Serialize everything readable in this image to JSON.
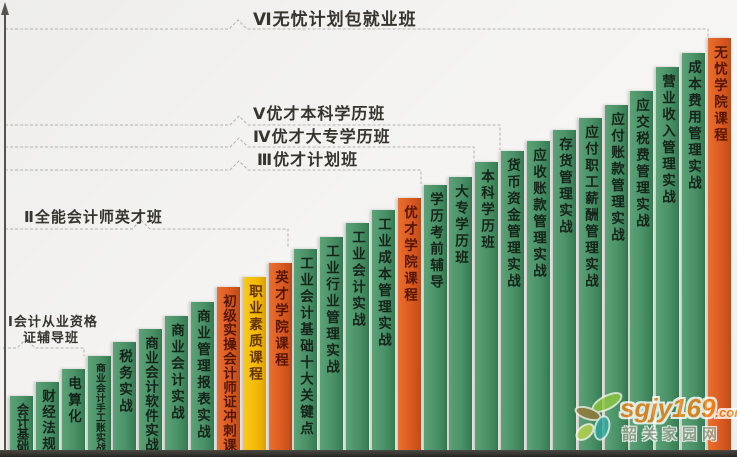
{
  "chart_data": {
    "type": "bar",
    "title": "",
    "description": "Ascending staircase of 28 accounting course modules grouped into six package levels; unlabeled vertical axis with arrow; relative bar heights in pixels (no numeric scale shown).",
    "categories": [
      "会计基础",
      "财经法规",
      "电算化",
      "商业会计手工账实战",
      "税务实战",
      "商业会计软件实战",
      "商业会计实战",
      "商业管理报表实战",
      "初级实操会计师证冲刺课",
      "职业素质课程",
      "英才学院课程",
      "工业会计基础十大关键点",
      "工业行业管理实战",
      "工业会计实战",
      "工业成本管理实战",
      "优才学院课程",
      "学历考前辅导",
      "大专学历班",
      "本科学历班",
      "货币资金管理实战",
      "应收账款管理实战",
      "存货管理实战",
      "应付职工薪酬管理实战",
      "应付账款管理实战",
      "应交税费管理实战",
      "营业收入管理实战",
      "成本费用管理实战",
      "无忧学院课程"
    ],
    "values": [
      61,
      75,
      88,
      101,
      115,
      128,
      141,
      155,
      170,
      180,
      194,
      208,
      220,
      234,
      247,
      259,
      272,
      280,
      295,
      306,
      316,
      327,
      339,
      352,
      366,
      390,
      404,
      419
    ],
    "bar_colors": [
      "green",
      "green",
      "green",
      "green",
      "green",
      "green",
      "green",
      "green",
      "orange",
      "yellow",
      "orange",
      "green",
      "green",
      "green",
      "green",
      "orange",
      "green",
      "green",
      "green",
      "green",
      "green",
      "green",
      "green",
      "green",
      "green",
      "green",
      "green",
      "orange"
    ],
    "xlabel": "",
    "ylabel": "",
    "axis_note": "vertical axis with upward arrow, no ticks or units",
    "levels": [
      {
        "id": "Ⅰ",
        "label": "Ⅰ会计从业资格证辅导班",
        "label_lines": [
          "Ⅰ会计从业资格",
          "证辅导班"
        ],
        "through_course": "电算化"
      },
      {
        "id": "Ⅱ",
        "label": "Ⅱ全能会计师英才班",
        "through_course": "英才学院课程"
      },
      {
        "id": "Ⅲ",
        "label": "Ⅲ优才计划班",
        "through_course": "优才学院课程"
      },
      {
        "id": "Ⅳ",
        "label": "Ⅳ优才大专学历班",
        "through_course": "大专学历班"
      },
      {
        "id": "Ⅴ",
        "label": "Ⅴ优才本科学历班",
        "through_course": "本科学历班"
      },
      {
        "id": "Ⅵ",
        "label": "Ⅵ无忧计划包就业班",
        "through_course": "无忧学院课程"
      }
    ]
  },
  "colors": {
    "bar_green": "#4A9168",
    "bar_orange": "#DC5A22",
    "bar_yellow": "#F3B805",
    "background": "#F2F1EF",
    "baseline_band": "#2F2E2B",
    "dashed_line": "#B3B1AA",
    "label_text": "#35342E"
  },
  "watermark": {
    "brand": "sgjy169",
    "tld": ".com",
    "site_name": "韶关家园网"
  }
}
